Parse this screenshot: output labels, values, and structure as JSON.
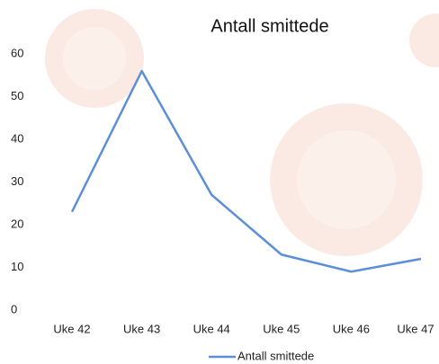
{
  "chart_data": {
    "type": "line",
    "title": "Antall smittede",
    "categories": [
      "Uke 42",
      "Uke 43",
      "Uke 44",
      "Uke 45",
      "Uke 46",
      "Uke 47"
    ],
    "series": [
      {
        "name": "Antall smittede",
        "color": "#5b8fd6",
        "values": [
          23,
          56,
          27,
          13,
          9,
          12
        ]
      }
    ],
    "ylim": [
      0,
      60
    ],
    "yticks": [
      0,
      10,
      20,
      30,
      40,
      50,
      60
    ],
    "grid": false,
    "legend": "bottom"
  }
}
